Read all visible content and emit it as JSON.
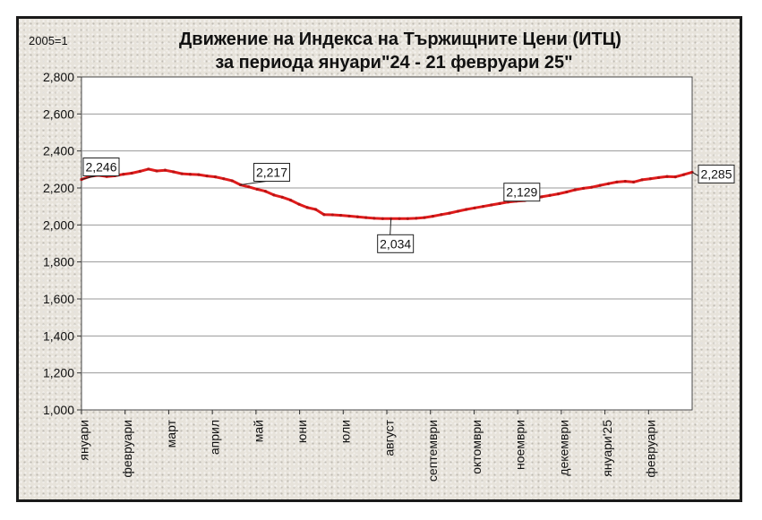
{
  "chart_data": {
    "type": "line",
    "title": [
      "Движение на Индекса на Тържищните Цени (ИТЦ)",
      "за периода януари\"24 - 21 февруари 25\""
    ],
    "unit_label": "2005=1",
    "ylim": [
      1.0,
      2.8
    ],
    "ytick_values": [
      1.0,
      1.2,
      1.4,
      1.6,
      1.8,
      2.0,
      2.2,
      2.4,
      2.6,
      2.8
    ],
    "ytick_labels": [
      "1,000",
      "1,200",
      "1,400",
      "1,600",
      "1,800",
      "2,000",
      "2,200",
      "2,400",
      "2,600",
      "2,800"
    ],
    "x_month_labels": [
      "януари",
      "февруари",
      "март",
      "април",
      "май",
      "юни",
      "юли",
      "август",
      "септември",
      "октомври",
      "ноември",
      "декември",
      "януари'25",
      "февруари"
    ],
    "grid": true,
    "legend": "none",
    "color": "#e01b1b",
    "series": [
      {
        "values": [
          2.246,
          2.262,
          2.268,
          2.262,
          2.266,
          2.274,
          2.28,
          2.29,
          2.302,
          2.292,
          2.296,
          2.287,
          2.277,
          2.274,
          2.272,
          2.265,
          2.26,
          2.25,
          2.239,
          2.217,
          2.206,
          2.193,
          2.182,
          2.162,
          2.15,
          2.134,
          2.112,
          2.094,
          2.084,
          2.056,
          2.055,
          2.052,
          2.048,
          2.044,
          2.04,
          2.036,
          2.034,
          2.034,
          2.034,
          2.034,
          2.036,
          2.04,
          2.047,
          2.056,
          2.064,
          2.074,
          2.084,
          2.092,
          2.1,
          2.108,
          2.116,
          2.124,
          2.129,
          2.132,
          2.143,
          2.152,
          2.16,
          2.168,
          2.178,
          2.19,
          2.198,
          2.204,
          2.214,
          2.223,
          2.232,
          2.236,
          2.232,
          2.244,
          2.25,
          2.256,
          2.262,
          2.26,
          2.272,
          2.285
        ]
      }
    ],
    "data_labels": [
      {
        "index": 0,
        "text": "2,246"
      },
      {
        "index": 19,
        "text": "2,217"
      },
      {
        "index": 37,
        "text": "2,034"
      },
      {
        "index": 52,
        "text": "2,129"
      },
      {
        "index": 73,
        "text": "2,285"
      }
    ]
  }
}
